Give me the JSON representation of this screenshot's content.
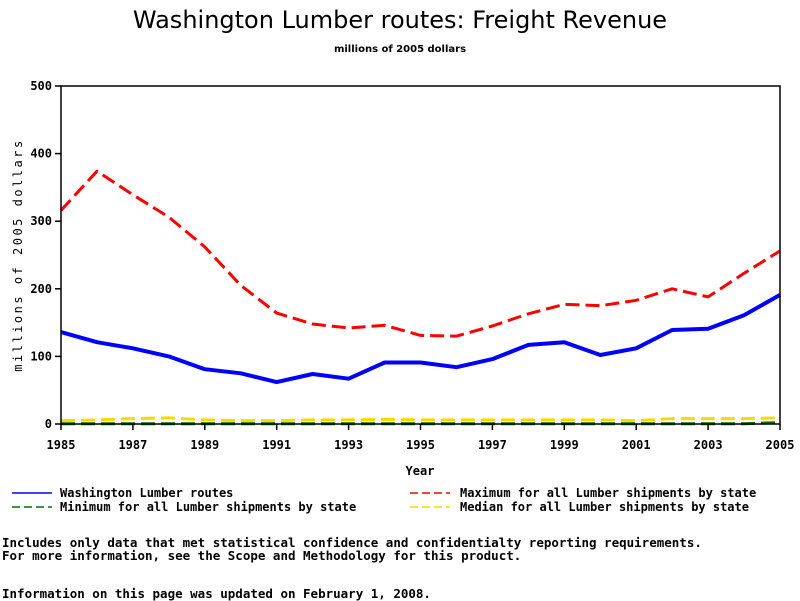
{
  "chart_data": {
    "type": "line",
    "title": "Washington Lumber routes: Freight Revenue",
    "subtitle": "millions of 2005 dollars",
    "xlabel": "Year",
    "ylabel": "millions of 2005 dollars",
    "xlim": [
      1985,
      2005
    ],
    "ylim": [
      0,
      500
    ],
    "x_ticks": [
      1985,
      1987,
      1989,
      1991,
      1993,
      1995,
      1997,
      1999,
      2001,
      2003,
      2005
    ],
    "x_tick_labels": [
      "1985",
      "1987",
      "1989",
      "1991",
      "1993",
      "1995",
      "1997",
      "1999",
      "2001",
      "2003",
      "2005"
    ],
    "y_ticks": [
      0,
      100,
      200,
      300,
      400,
      500
    ],
    "y_tick_labels": [
      "0",
      "100",
      "200",
      "300",
      "400",
      "500"
    ],
    "grid": false,
    "legend_position": "bottom",
    "x": [
      1985,
      1986,
      1987,
      1988,
      1989,
      1990,
      1991,
      1992,
      1993,
      1994,
      1995,
      1996,
      1997,
      1998,
      1999,
      2000,
      2001,
      2002,
      2003,
      2004,
      2005
    ],
    "series": [
      {
        "name": "Washington Lumber routes",
        "color": "#0000ff",
        "style": "solid",
        "values": [
          136,
          121,
          112,
          100,
          81,
          75,
          62,
          74,
          67,
          91,
          91,
          84,
          96,
          117,
          121,
          102,
          112,
          139,
          141,
          161,
          191
        ]
      },
      {
        "name": "Maximum for all Lumber shipments by state",
        "color": "#ff0000",
        "style": "dashed",
        "values": [
          316,
          374,
          339,
          306,
          262,
          205,
          164,
          148,
          142,
          146,
          131,
          130,
          145,
          163,
          177,
          175,
          183,
          200,
          188,
          223,
          256
        ]
      },
      {
        "name": "Minimum for all Lumber shipments by state",
        "color": "#007000",
        "style": "dashed",
        "values": [
          0.5,
          0.5,
          0.5,
          0.5,
          0.5,
          0.5,
          0.5,
          0.5,
          0.5,
          0.5,
          0.5,
          0.5,
          0.5,
          0.5,
          0.5,
          0.5,
          0.5,
          0.5,
          0.5,
          0.5,
          2
        ]
      },
      {
        "name": "Median for all Lumber shipments by state",
        "color": "#ffd700",
        "style": "dashed",
        "values": [
          5,
          6,
          8,
          9,
          6,
          5,
          5,
          6,
          6,
          7,
          6,
          6,
          6,
          6,
          6,
          6,
          5,
          8,
          8,
          8,
          9
        ]
      }
    ]
  },
  "legend": [
    {
      "label": "Washington Lumber routes",
      "color": "#0000ff",
      "style": "solid"
    },
    {
      "label": "Maximum for all Lumber shipments by state",
      "color": "#ff0000",
      "style": "dashed"
    },
    {
      "label": "Minimum for all Lumber shipments by state",
      "color": "#007000",
      "style": "dashed"
    },
    {
      "label": "Median for all Lumber shipments by state",
      "color": "#ffd700",
      "style": "dashed"
    }
  ],
  "notes": {
    "line1": "Includes only data that met statistical confidence and confidentialty reporting requirements.",
    "line2": "For more information, see the Scope and Methodology for this product.",
    "updated": "Information on this page was updated on February 1, 2008."
  }
}
